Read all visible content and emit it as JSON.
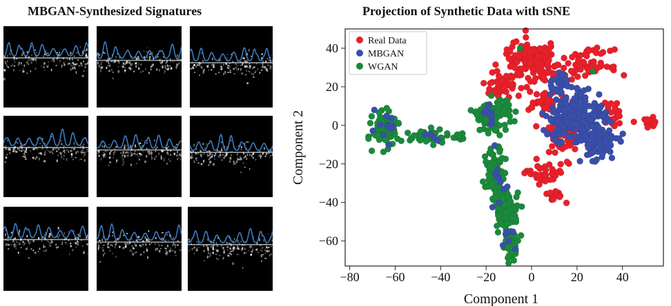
{
  "figure": {
    "left_title": "MBGAN-Synthesized Signatures",
    "right_title": "Projection of Synthetic Data with tSNE"
  },
  "signature_panels": {
    "rows": 3,
    "cols": 3,
    "trace_color": "#3a7cc2",
    "background_color": "#000000"
  },
  "chart_data": {
    "type": "scatter",
    "title": "Projection of Synthetic Data with tSNE",
    "xlabel": "Component 1",
    "ylabel": "Component 2",
    "xlim": [
      -82,
      58
    ],
    "ylim": [
      -73,
      50
    ],
    "xticks": [
      -80,
      -60,
      -40,
      -20,
      0,
      20,
      40
    ],
    "yticks": [
      -60,
      -40,
      -20,
      0,
      20,
      40
    ],
    "xtick_labels": [
      "−80",
      "−60",
      "−40",
      "−20",
      "0",
      "20",
      "40"
    ],
    "ytick_labels": [
      "−60",
      "−40",
      "−20",
      "0",
      "20",
      "40"
    ],
    "legend_position": "top-left",
    "grid": false,
    "series": [
      {
        "name": "Real Data",
        "color": "#e8202a",
        "clusters": [
          {
            "cx": 0,
            "cy": 33,
            "sx": 9,
            "sy": 7,
            "n": 160
          },
          {
            "cx": -13,
            "cy": 21,
            "sx": 6,
            "sy": 4,
            "n": 45
          },
          {
            "cx": 25,
            "cy": 32,
            "sx": 7,
            "sy": 5,
            "n": 60
          },
          {
            "cx": 5,
            "cy": 12,
            "sx": 5,
            "sy": 4,
            "n": 30
          },
          {
            "cx": 14,
            "cy": -5,
            "sx": 7,
            "sy": 9,
            "n": 70
          },
          {
            "cx": 5,
            "cy": -26,
            "sx": 5,
            "sy": 4,
            "n": 35
          },
          {
            "cx": 10,
            "cy": -36,
            "sx": 3,
            "sy": 2,
            "n": 18
          },
          {
            "cx": 52,
            "cy": 1,
            "sx": 2,
            "sy": 2,
            "n": 18
          },
          {
            "cx": 36,
            "cy": 5,
            "sx": 3,
            "sy": 5,
            "n": 25
          }
        ]
      },
      {
        "name": "MBGAN",
        "color": "#3a4faa",
        "clusters": [
          {
            "cx": 20,
            "cy": 4,
            "sx": 9,
            "sy": 11,
            "n": 230
          },
          {
            "cx": 30,
            "cy": -10,
            "sx": 6,
            "sy": 6,
            "n": 60
          },
          {
            "cx": 12,
            "cy": 22,
            "sx": 4,
            "sy": 3,
            "n": 30
          },
          {
            "cx": -65,
            "cy": -2,
            "sx": 4,
            "sy": 5,
            "n": 12
          },
          {
            "cx": -18,
            "cy": 4,
            "sx": 4,
            "sy": 5,
            "n": 10
          },
          {
            "cx": -15,
            "cy": -30,
            "sx": 3,
            "sy": 10,
            "n": 10
          },
          {
            "cx": -10,
            "cy": -60,
            "sx": 2,
            "sy": 5,
            "n": 8
          },
          {
            "cx": -45,
            "cy": -7,
            "sx": 3,
            "sy": 2,
            "n": 4
          }
        ]
      },
      {
        "name": "WGAN",
        "color": "#1b8a3c",
        "clusters": [
          {
            "cx": -64,
            "cy": -2,
            "sx": 4,
            "sy": 6,
            "n": 110
          },
          {
            "cx": -45,
            "cy": -6,
            "sx": 6,
            "sy": 2.5,
            "n": 45
          },
          {
            "cx": -31,
            "cy": -6,
            "sx": 2,
            "sy": 2,
            "n": 12
          },
          {
            "cx": -23,
            "cy": 4,
            "sx": 2.5,
            "sy": 4,
            "n": 25
          },
          {
            "cx": -16,
            "cy": 5,
            "sx": 5,
            "sy": 6,
            "n": 85
          },
          {
            "cx": -16,
            "cy": -25,
            "sx": 3,
            "sy": 9,
            "n": 100
          },
          {
            "cx": -11,
            "cy": -44,
            "sx": 4,
            "sy": 7,
            "n": 80
          },
          {
            "cx": -9,
            "cy": -62,
            "sx": 2.5,
            "sy": 5,
            "n": 35
          }
        ],
        "points": [
          [
            -5,
            40
          ],
          [
            27,
            28
          ]
        ]
      }
    ]
  }
}
